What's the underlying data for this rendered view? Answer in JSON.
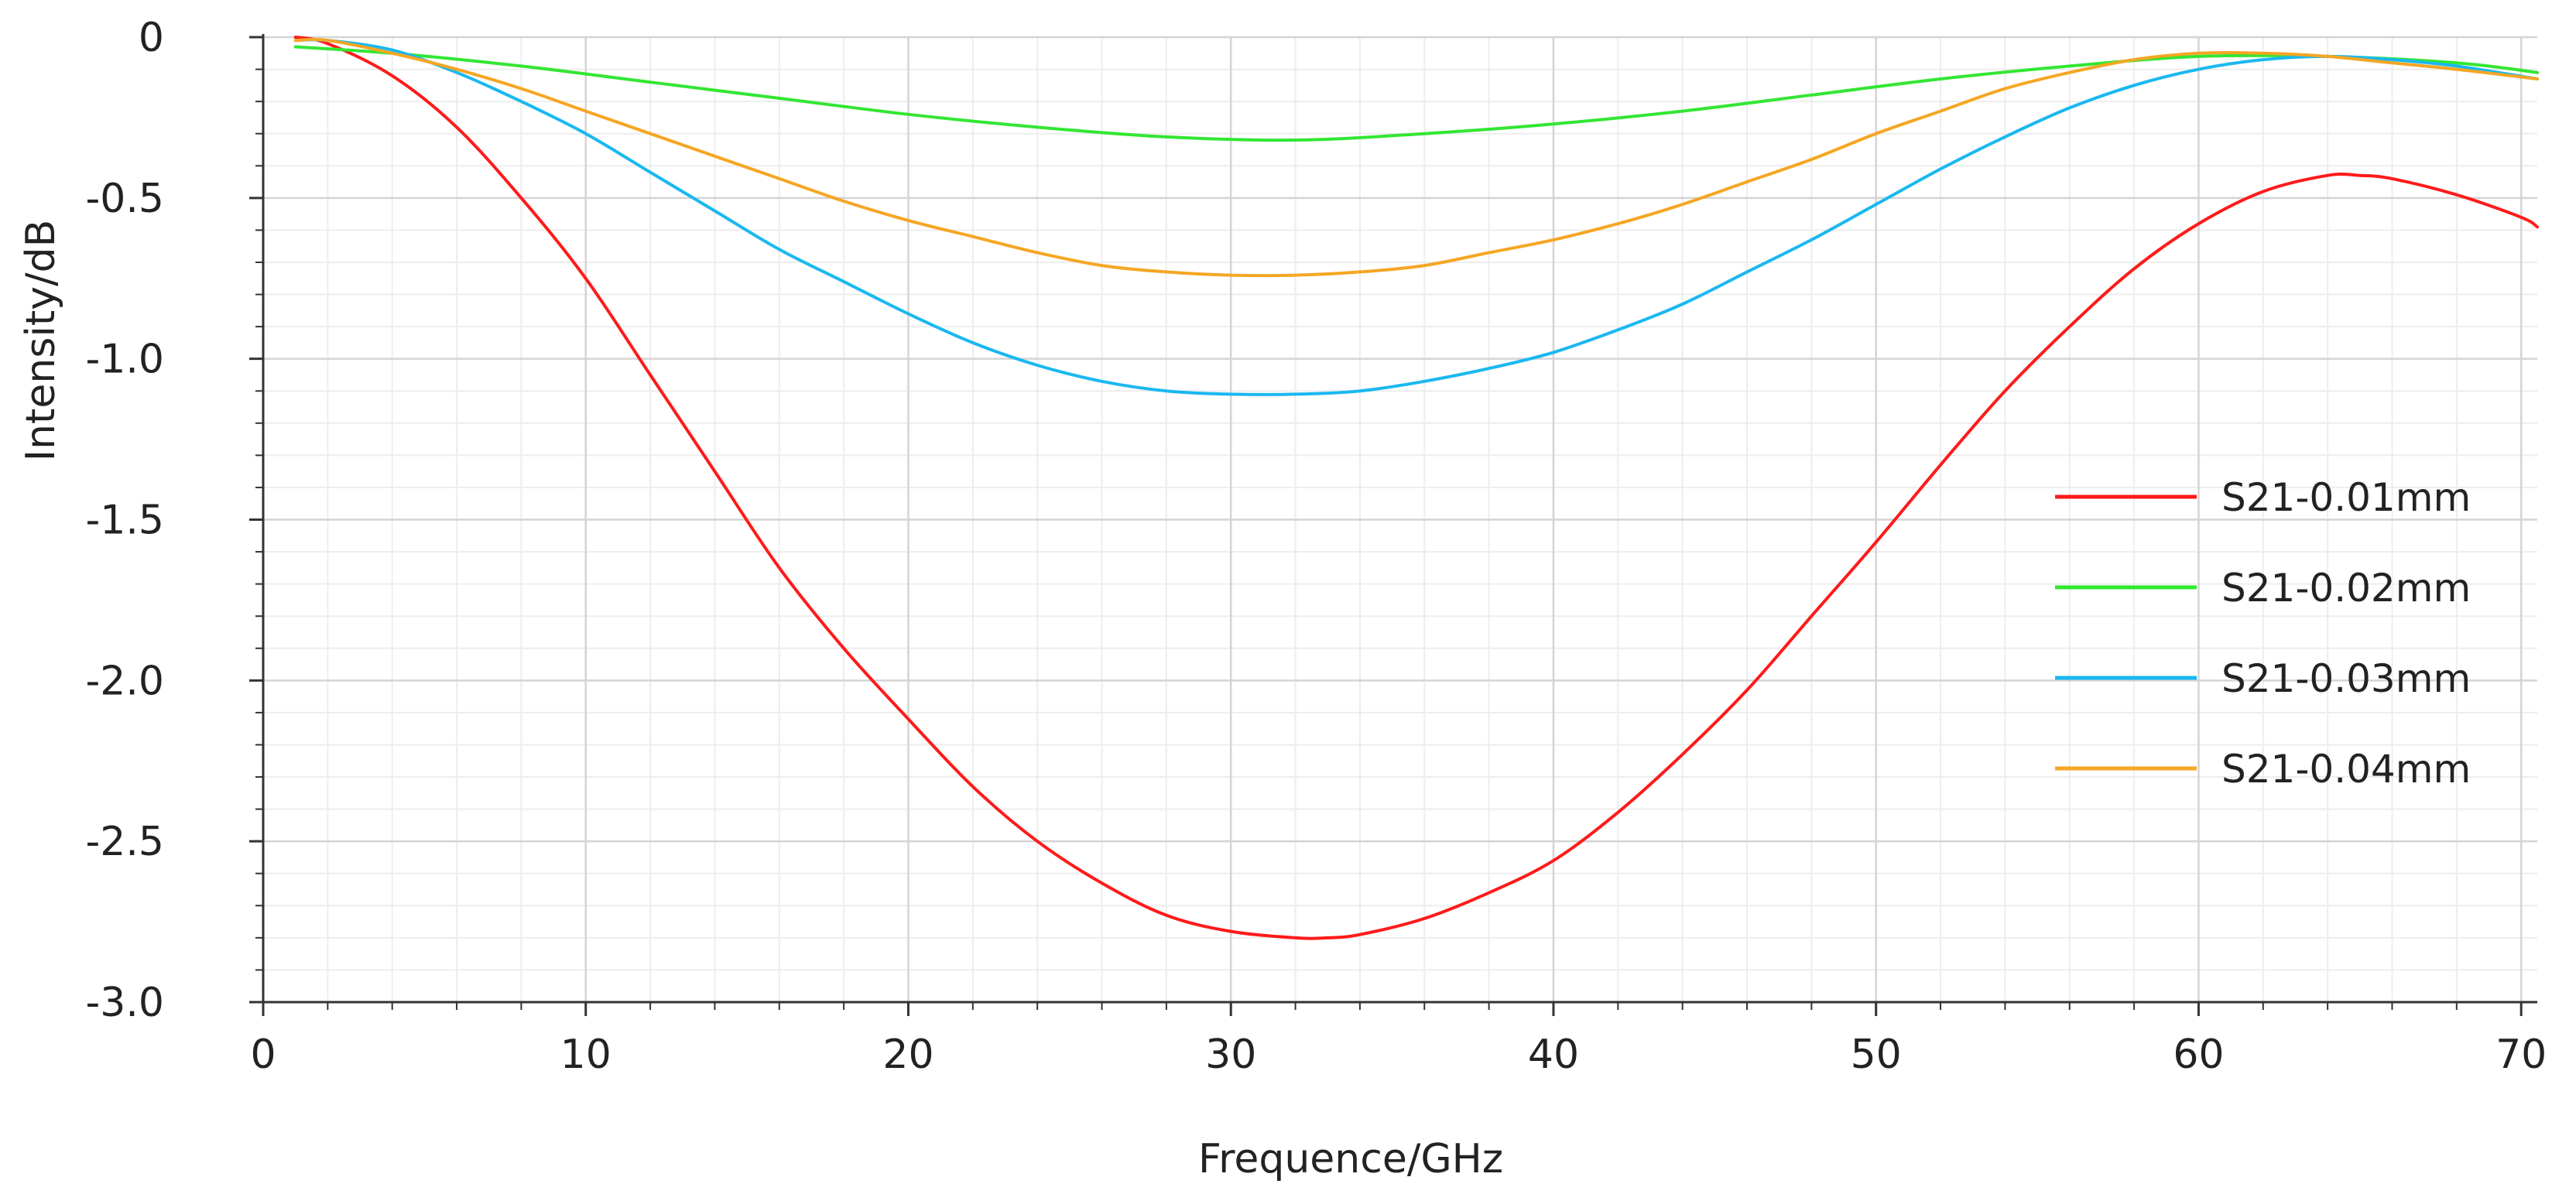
{
  "chart_data": {
    "type": "line",
    "title": "",
    "xlabel": "Frequence/GHz",
    "ylabel": "Intensity/dB",
    "xlim": [
      0,
      70.5
    ],
    "ylim": [
      -3.0,
      0
    ],
    "xticks": [
      0,
      10,
      20,
      30,
      40,
      50,
      60,
      70
    ],
    "xtick_labels": [
      "0",
      "10",
      "20",
      "30",
      "40",
      "50",
      "60",
      "70"
    ],
    "yticks": [
      0,
      -0.5,
      -1.0,
      -1.5,
      -2.0,
      -2.5,
      -3.0
    ],
    "ytick_labels": [
      "0",
      "-0.5",
      "-1.0",
      "-1.5",
      "-2.0",
      "-2.5",
      "-3.0"
    ],
    "grid": true,
    "legend_position": "right-middle",
    "series": [
      {
        "name": "S21-0.01mm",
        "color": "#ff1a1a",
        "points": [
          [
            1,
            0
          ],
          [
            2,
            -0.02
          ],
          [
            4,
            -0.12
          ],
          [
            6,
            -0.28
          ],
          [
            8,
            -0.5
          ],
          [
            10,
            -0.75
          ],
          [
            12,
            -1.05
          ],
          [
            14,
            -1.35
          ],
          [
            16,
            -1.65
          ],
          [
            18,
            -1.9
          ],
          [
            20,
            -2.12
          ],
          [
            22,
            -2.33
          ],
          [
            24,
            -2.5
          ],
          [
            26,
            -2.63
          ],
          [
            28,
            -2.73
          ],
          [
            30,
            -2.78
          ],
          [
            32,
            -2.8
          ],
          [
            33,
            -2.8
          ],
          [
            34,
            -2.79
          ],
          [
            36,
            -2.74
          ],
          [
            38,
            -2.66
          ],
          [
            40,
            -2.56
          ],
          [
            42,
            -2.41
          ],
          [
            44,
            -2.23
          ],
          [
            46,
            -2.03
          ],
          [
            48,
            -1.8
          ],
          [
            50,
            -1.57
          ],
          [
            52,
            -1.33
          ],
          [
            54,
            -1.1
          ],
          [
            56,
            -0.9
          ],
          [
            58,
            -0.72
          ],
          [
            60,
            -0.58
          ],
          [
            62,
            -0.48
          ],
          [
            64,
            -0.43
          ],
          [
            65,
            -0.43
          ],
          [
            66,
            -0.44
          ],
          [
            68,
            -0.49
          ],
          [
            70,
            -0.56
          ],
          [
            70.5,
            -0.59
          ]
        ]
      },
      {
        "name": "S21-0.02mm",
        "color": "#33e633",
        "points": [
          [
            1,
            -0.03
          ],
          [
            4,
            -0.05
          ],
          [
            8,
            -0.09
          ],
          [
            12,
            -0.14
          ],
          [
            16,
            -0.19
          ],
          [
            20,
            -0.24
          ],
          [
            24,
            -0.28
          ],
          [
            28,
            -0.31
          ],
          [
            32,
            -0.32
          ],
          [
            36,
            -0.3
          ],
          [
            40,
            -0.27
          ],
          [
            44,
            -0.23
          ],
          [
            48,
            -0.18
          ],
          [
            52,
            -0.13
          ],
          [
            56,
            -0.09
          ],
          [
            60,
            -0.06
          ],
          [
            64,
            -0.06
          ],
          [
            68,
            -0.08
          ],
          [
            70.5,
            -0.11
          ]
        ]
      },
      {
        "name": "S21-0.03mm",
        "color": "#1ab8f0",
        "points": [
          [
            1,
            -0.01
          ],
          [
            2,
            -0.01
          ],
          [
            4,
            -0.04
          ],
          [
            6,
            -0.11
          ],
          [
            8,
            -0.2
          ],
          [
            10,
            -0.3
          ],
          [
            12,
            -0.42
          ],
          [
            14,
            -0.54
          ],
          [
            16,
            -0.66
          ],
          [
            18,
            -0.76
          ],
          [
            20,
            -0.86
          ],
          [
            22,
            -0.95
          ],
          [
            24,
            -1.02
          ],
          [
            26,
            -1.07
          ],
          [
            28,
            -1.1
          ],
          [
            30,
            -1.11
          ],
          [
            32,
            -1.11
          ],
          [
            34,
            -1.1
          ],
          [
            36,
            -1.07
          ],
          [
            38,
            -1.03
          ],
          [
            40,
            -0.98
          ],
          [
            42,
            -0.91
          ],
          [
            44,
            -0.83
          ],
          [
            46,
            -0.73
          ],
          [
            48,
            -0.63
          ],
          [
            50,
            -0.52
          ],
          [
            52,
            -0.41
          ],
          [
            54,
            -0.31
          ],
          [
            56,
            -0.22
          ],
          [
            58,
            -0.15
          ],
          [
            60,
            -0.1
          ],
          [
            62,
            -0.07
          ],
          [
            64,
            -0.06
          ],
          [
            66,
            -0.07
          ],
          [
            68,
            -0.09
          ],
          [
            70.5,
            -0.13
          ]
        ]
      },
      {
        "name": "S21-0.04mm",
        "color": "#f5a623",
        "points": [
          [
            1,
            -0.01
          ],
          [
            2,
            -0.01
          ],
          [
            4,
            -0.05
          ],
          [
            6,
            -0.1
          ],
          [
            8,
            -0.16
          ],
          [
            10,
            -0.23
          ],
          [
            12,
            -0.3
          ],
          [
            14,
            -0.37
          ],
          [
            16,
            -0.44
          ],
          [
            18,
            -0.51
          ],
          [
            20,
            -0.57
          ],
          [
            22,
            -0.62
          ],
          [
            24,
            -0.67
          ],
          [
            26,
            -0.71
          ],
          [
            28,
            -0.73
          ],
          [
            30,
            -0.74
          ],
          [
            32,
            -0.74
          ],
          [
            34,
            -0.73
          ],
          [
            36,
            -0.71
          ],
          [
            38,
            -0.67
          ],
          [
            40,
            -0.63
          ],
          [
            42,
            -0.58
          ],
          [
            44,
            -0.52
          ],
          [
            46,
            -0.45
          ],
          [
            48,
            -0.38
          ],
          [
            50,
            -0.3
          ],
          [
            52,
            -0.23
          ],
          [
            54,
            -0.16
          ],
          [
            56,
            -0.11
          ],
          [
            58,
            -0.07
          ],
          [
            60,
            -0.05
          ],
          [
            62,
            -0.05
          ],
          [
            64,
            -0.06
          ],
          [
            66,
            -0.08
          ],
          [
            68,
            -0.1
          ],
          [
            70.5,
            -0.13
          ]
        ]
      }
    ]
  }
}
